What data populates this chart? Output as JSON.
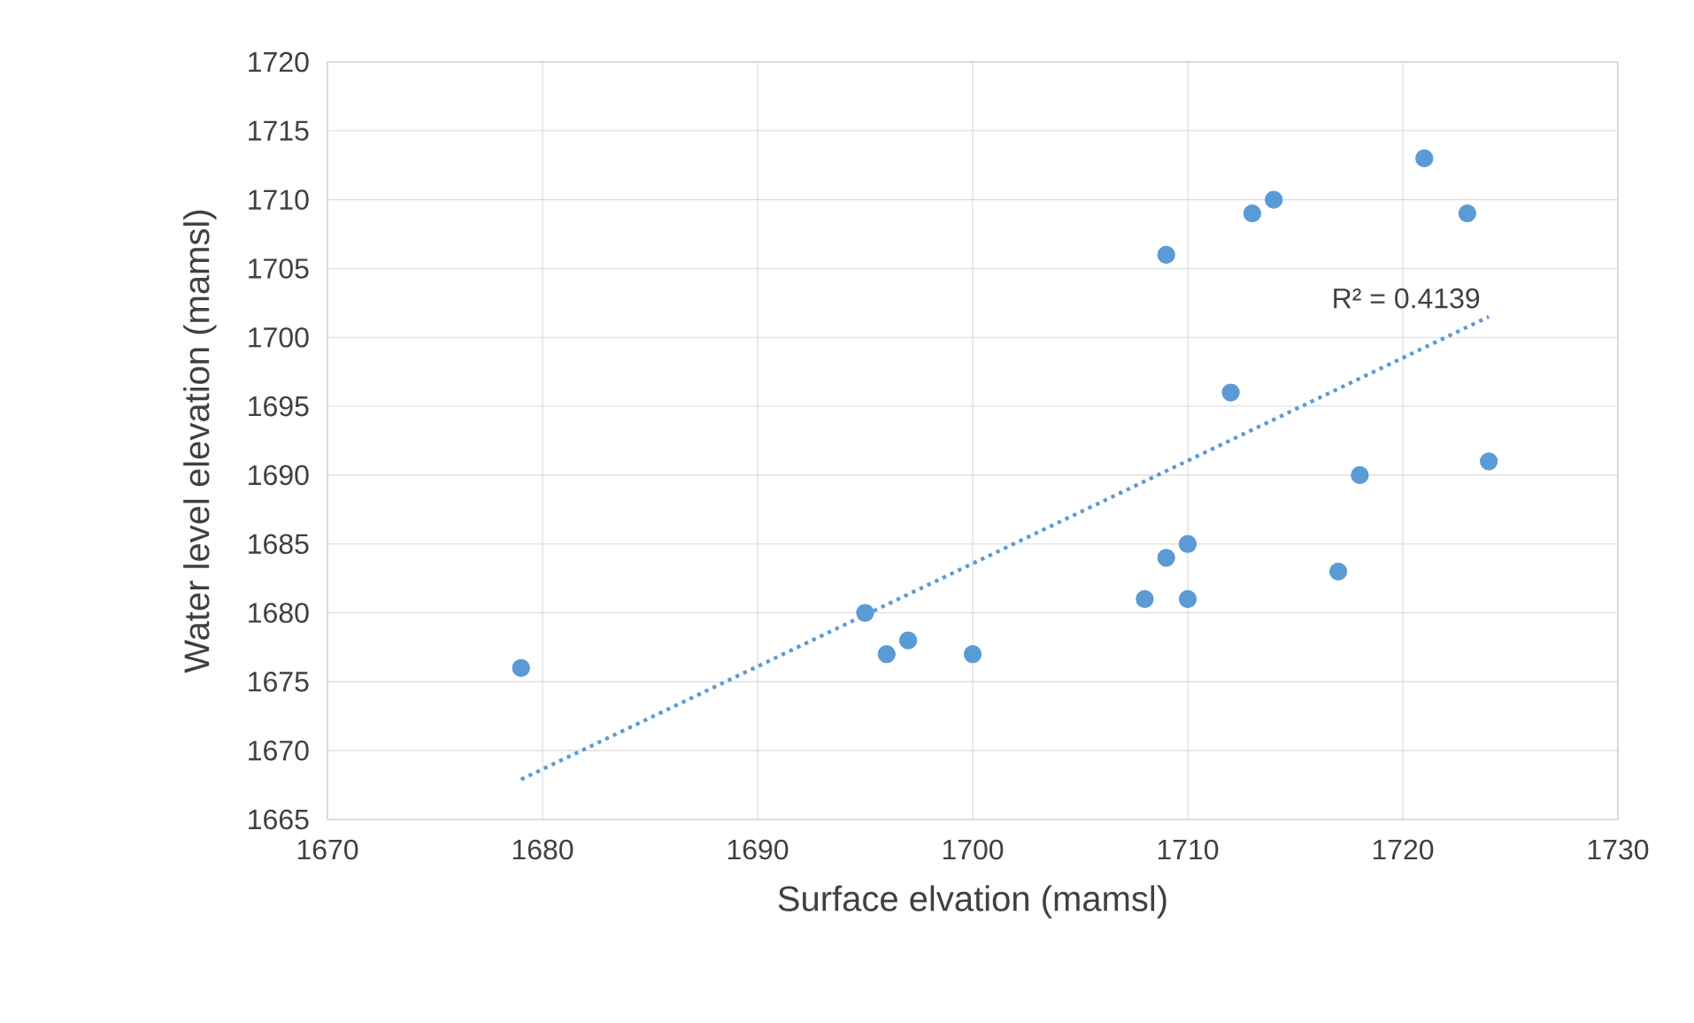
{
  "chart_data": {
    "type": "scatter",
    "xlabel": "Surface elvation (mamsl)",
    "ylabel": "Water level elevation (mamsl)",
    "xlim": [
      1670,
      1730
    ],
    "xticks": [
      1670,
      1680,
      1690,
      1700,
      1710,
      1720,
      1730
    ],
    "ylim": [
      1665,
      1720
    ],
    "yticks": [
      1665,
      1670,
      1675,
      1680,
      1685,
      1690,
      1695,
      1700,
      1705,
      1710,
      1715,
      1720
    ],
    "grid": true,
    "legend": false,
    "marker": "circle",
    "annotations": [
      "R² = 0.4139"
    ],
    "series": [
      {
        "type": "scatter",
        "color": "#5b9bd5",
        "x": [
          1679,
          1695,
          1696,
          1697,
          1700,
          1708,
          1709,
          1710,
          1710,
          1709,
          1712,
          1713,
          1714,
          1717,
          1718,
          1721,
          1723,
          1724
        ],
        "values": [
          1676,
          1680,
          1677,
          1678,
          1677,
          1681,
          1684,
          1685,
          1681,
          1706,
          1696,
          1709,
          1710,
          1683,
          1690,
          1713,
          1709,
          1691
        ]
      },
      {
        "type": "line",
        "marker": "none",
        "line_style": "dotted",
        "color": "#5b9bd5",
        "x": [
          1679,
          1724
        ],
        "values": [
          1667.9,
          1701.5
        ]
      }
    ]
  }
}
